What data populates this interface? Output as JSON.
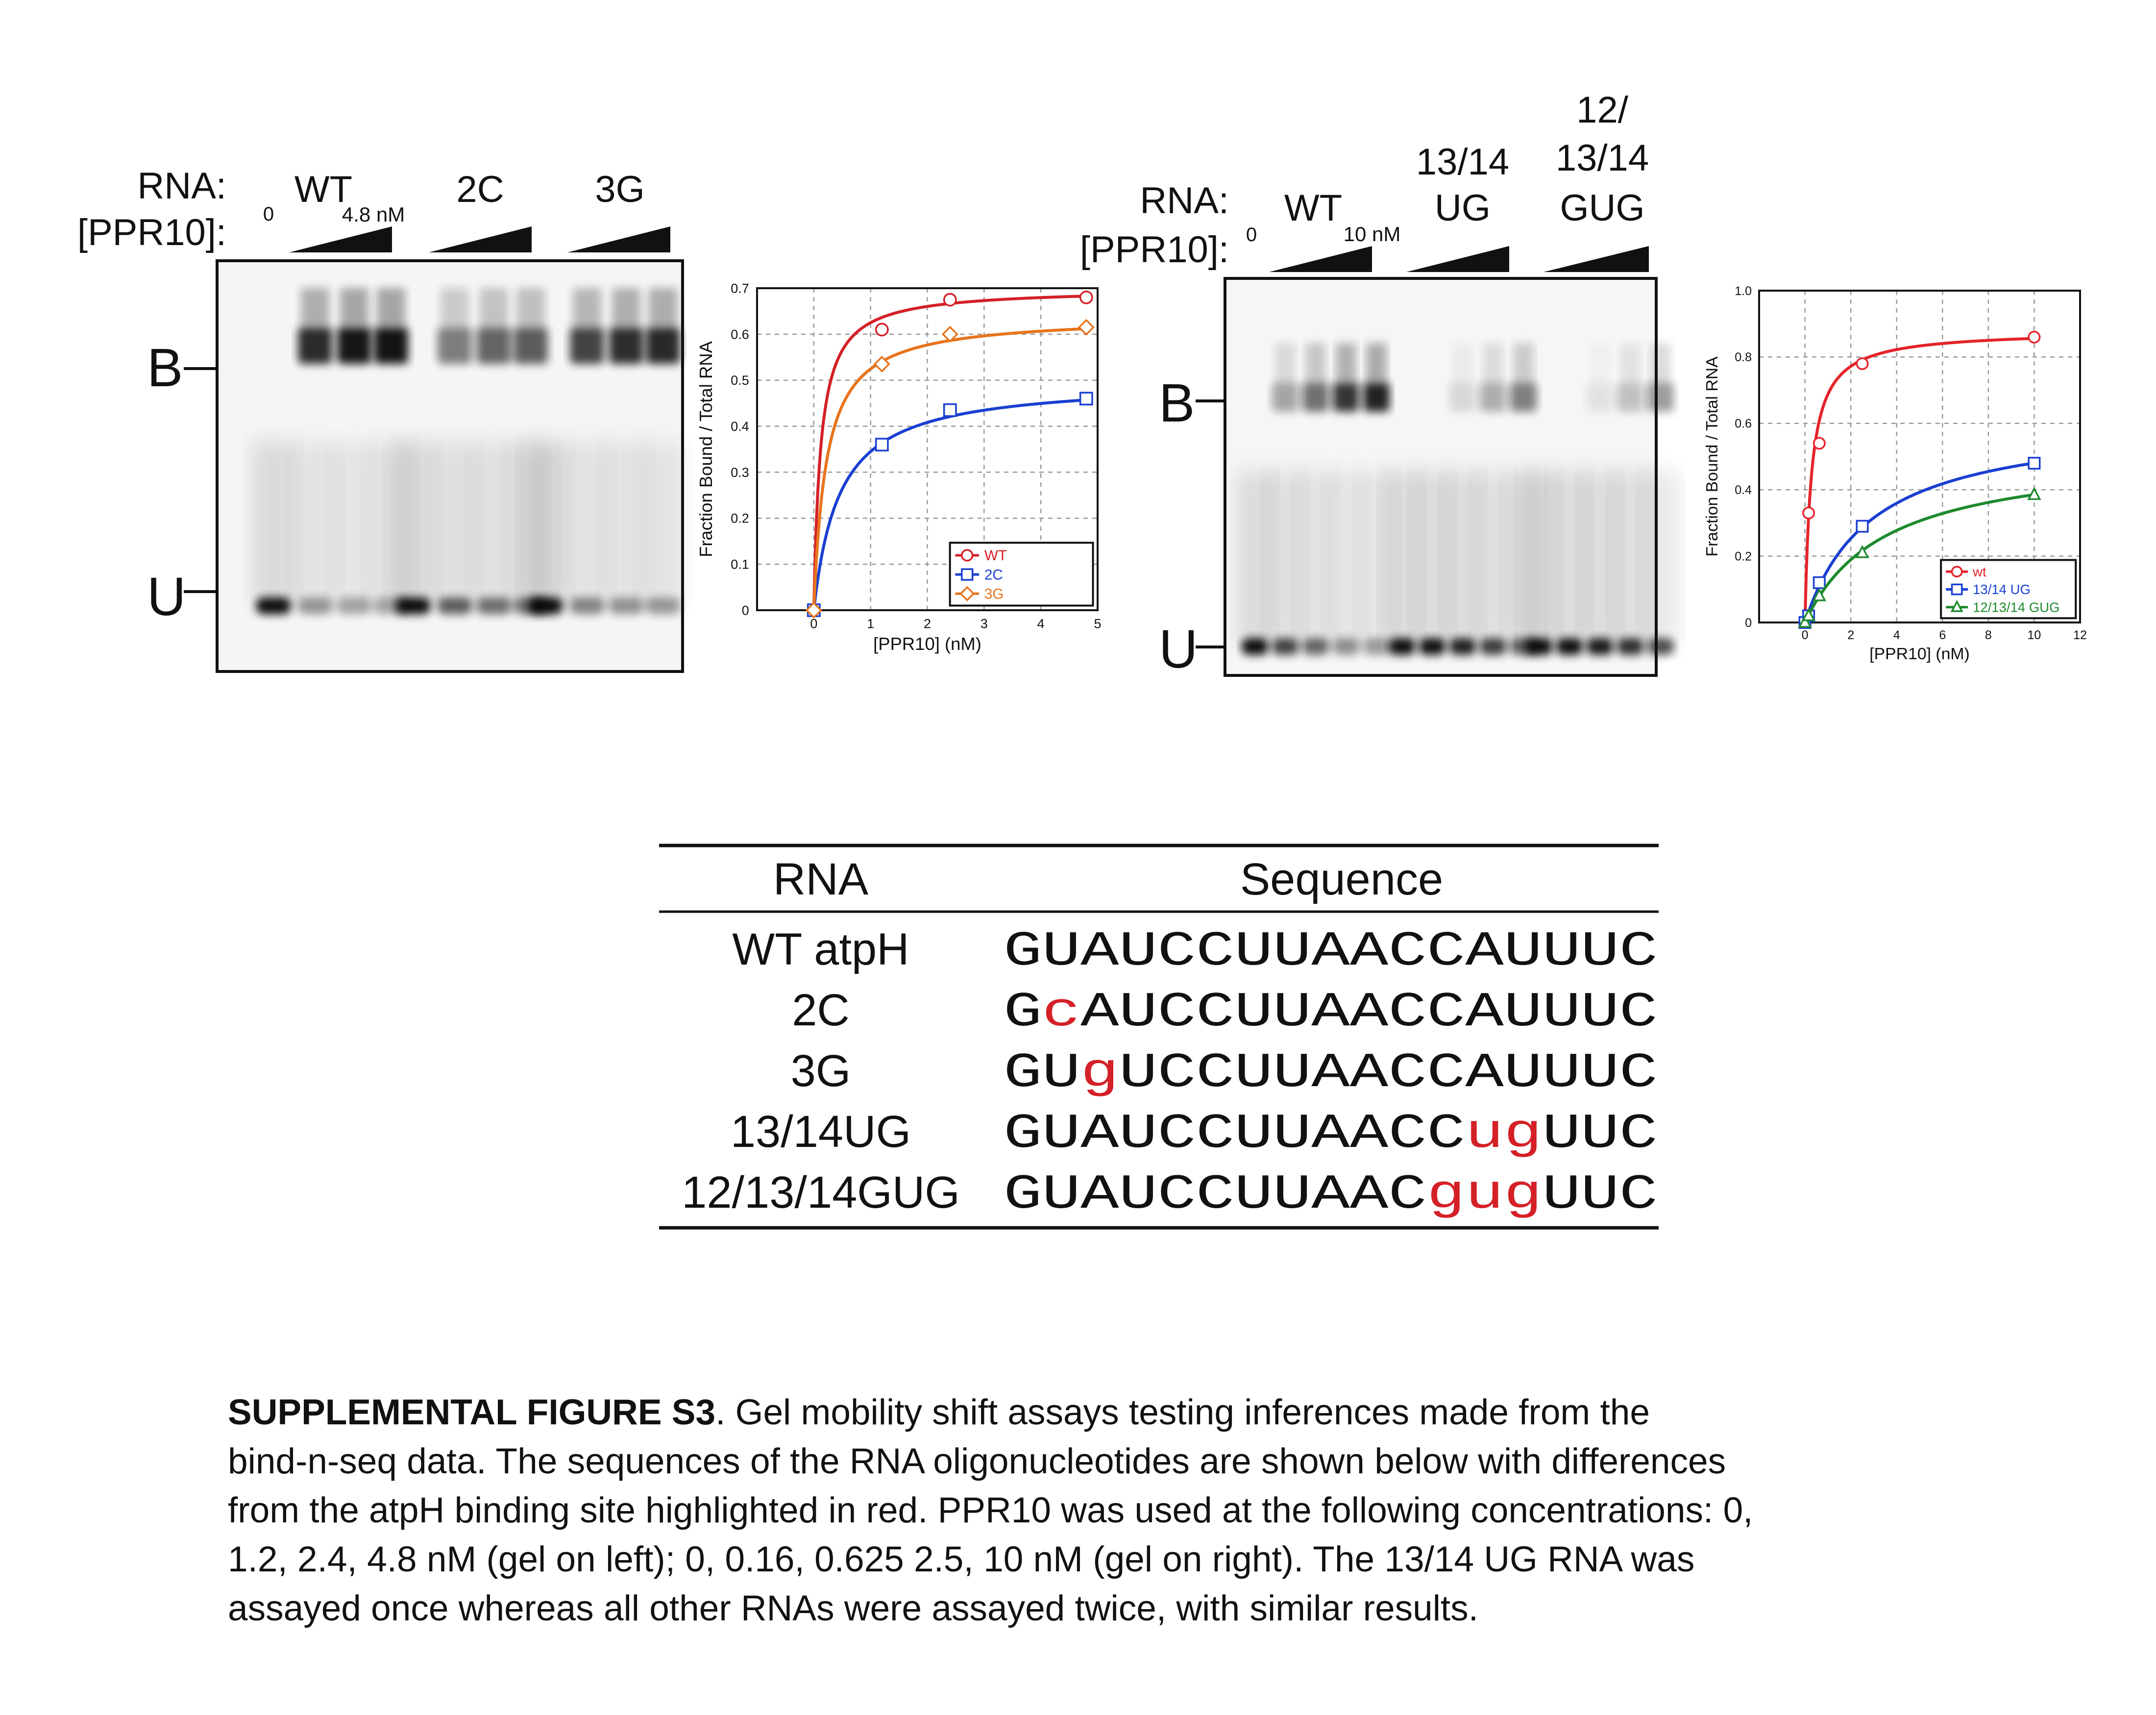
{
  "left_gel": {
    "rna_label": "RNA:",
    "ppr_label": "[PPR10]:",
    "zero": "0",
    "max_conc": "4.8 nM",
    "lanes": [
      "WT",
      "2C",
      "3G"
    ],
    "bound_marker": "B",
    "unbound_marker": "U"
  },
  "right_gel": {
    "rna_label": "RNA:",
    "ppr_label": "[PPR10]:",
    "zero": "0",
    "max_conc": "10 nM",
    "lanes": [
      "WT",
      "13/14 UG",
      "12/ 13/14 GUG"
    ],
    "lane_lines": [
      [
        "WT"
      ],
      [
        "13/14",
        "UG"
      ],
      [
        "12/",
        "13/14",
        "GUG"
      ]
    ],
    "bound_marker": "B",
    "unbound_marker": "U"
  },
  "chart_data": [
    {
      "type": "scatter",
      "xlabel": "[PPR10] (nM)",
      "ylabel": "Fraction Bound / Total RNA",
      "xlim": [
        -1,
        5
      ],
      "ylim": [
        0,
        0.7
      ],
      "xticks": [
        "0",
        "1",
        "2",
        "3",
        "4",
        "5"
      ],
      "yticks": [
        "0",
        "0.1",
        "0.2",
        "0.3",
        "0.4",
        "0.5",
        "0.6",
        "0.7"
      ],
      "grid": true,
      "legend": "bottom-right",
      "series": [
        {
          "name": "WT",
          "color": "#d42027",
          "marker": "circle",
          "x": [
            0,
            1.2,
            2.4,
            4.8
          ],
          "y": [
            0.0,
            0.61,
            0.675,
            0.68
          ],
          "fit": {
            "bmax": 0.7,
            "kd": 0.12
          }
        },
        {
          "name": "2C",
          "color": "#1a3fd1",
          "marker": "square",
          "x": [
            0,
            1.2,
            2.4,
            4.8
          ],
          "y": [
            0.0,
            0.36,
            0.435,
            0.46
          ],
          "fit": {
            "bmax": 0.5,
            "kd": 0.45
          }
        },
        {
          "name": "3G",
          "color": "#e8741c",
          "marker": "diamond",
          "x": [
            0,
            1.2,
            2.4,
            4.8
          ],
          "y": [
            0.0,
            0.535,
            0.6,
            0.615
          ],
          "fit": {
            "bmax": 0.64,
            "kd": 0.22
          }
        }
      ]
    },
    {
      "type": "scatter",
      "xlabel": "[PPR10] (nM)",
      "ylabel": "Fraction Bound / Total RNA",
      "xlim": [
        -2,
        12
      ],
      "ylim": [
        0,
        1.0
      ],
      "xticks": [
        "0",
        "2",
        "4",
        "6",
        "8",
        "10",
        "12"
      ],
      "yticks": [
        "0",
        "0.2",
        "0.4",
        "0.6",
        "0.8",
        "1.0"
      ],
      "grid": true,
      "legend": "bottom-right",
      "series": [
        {
          "name": "wt",
          "color": "#e5232a",
          "marker": "circle",
          "x": [
            0,
            0.16,
            0.625,
            2.5,
            10
          ],
          "y": [
            0.0,
            0.33,
            0.54,
            0.78,
            0.86
          ],
          "fit": {
            "bmax": 0.88,
            "kd": 0.28
          }
        },
        {
          "name": "13/14 UG",
          "color": "#1a3fd1",
          "marker": "square",
          "x": [
            0,
            0.16,
            0.625,
            2.5,
            10
          ],
          "y": [
            0.0,
            0.02,
            0.12,
            0.29,
            0.48
          ],
          "fit": {
            "bmax": 0.62,
            "kd": 2.9
          }
        },
        {
          "name": "12/13/14 GUG",
          "color": "#1e8a2e",
          "marker": "triangle",
          "x": [
            0,
            0.16,
            0.625,
            2.5,
            10
          ],
          "y": [
            0.0,
            0.02,
            0.08,
            0.21,
            0.385
          ],
          "fit": {
            "bmax": 0.52,
            "kd": 3.5
          }
        }
      ]
    }
  ],
  "table": {
    "headers": [
      "RNA",
      "Sequence"
    ],
    "rows": [
      {
        "name": "WT atpH",
        "seq": [
          {
            "t": "GUAUCCUUAACCAUUUC",
            "red": false
          }
        ]
      },
      {
        "name": "2C",
        "seq": [
          {
            "t": "G",
            "red": false
          },
          {
            "t": "c",
            "red": true
          },
          {
            "t": "AUCCUUAACCAUUUC",
            "red": false
          }
        ]
      },
      {
        "name": "3G",
        "seq": [
          {
            "t": "GU",
            "red": false
          },
          {
            "t": "g",
            "red": true
          },
          {
            "t": "UCCUUAACCAUUUC",
            "red": false
          }
        ]
      },
      {
        "name": "13/14UG",
        "seq": [
          {
            "t": "GUAUCCUUAACC",
            "red": false
          },
          {
            "t": "ug",
            "red": true
          },
          {
            "t": "UUC",
            "red": false
          }
        ]
      },
      {
        "name": "12/13/14GUG",
        "seq": [
          {
            "t": "GUAUCCUUAAC",
            "red": false
          },
          {
            "t": "gug",
            "red": true
          },
          {
            "t": "UUC",
            "red": false
          }
        ]
      }
    ]
  },
  "caption": {
    "bold": "SUPPLEMENTAL FIGURE S3",
    "lines": [
      ". Gel mobility shift assays testing inferences made from the",
      "bind-n-seq data.  The sequences of the RNA oligonucleotides are shown below with differences",
      "from the atpH binding site highlighted in red. PPR10 was used at the following concentrations: 0,",
      "1.2, 2.4, 4.8 nM (gel on left); 0, 0.16, 0.625 2.5, 10 nM (gel on right). The 13/14 UG RNA was",
      "assayed once whereas all other RNAs were assayed twice, with similar results."
    ]
  }
}
